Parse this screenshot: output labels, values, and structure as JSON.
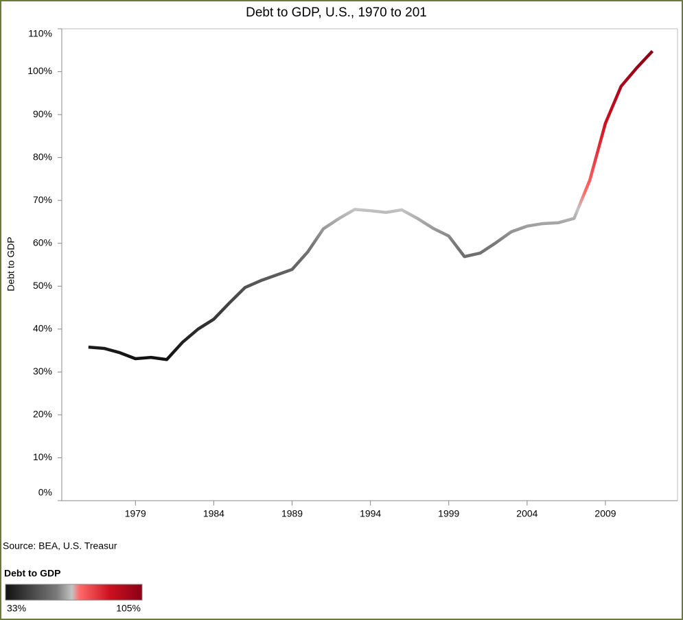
{
  "chart_data": {
    "type": "line",
    "title": "Debt to GDP, U.S., 1970 to 201",
    "y_label": "Debt to GDP",
    "source": "Source: BEA, U.S. Treasur",
    "x": [
      1976,
      1977,
      1978,
      1979,
      1980,
      1981,
      1982,
      1983,
      1984,
      1985,
      1986,
      1987,
      1988,
      1989,
      1990,
      1991,
      1992,
      1993,
      1994,
      1995,
      1996,
      1997,
      1998,
      1999,
      2000,
      2001,
      2002,
      2003,
      2004,
      2005,
      2006,
      2007,
      2008,
      2009,
      2010,
      2011,
      2012
    ],
    "series": [
      {
        "name": "Debt to GDP",
        "values": [
          35.8,
          35.5,
          34.5,
          33.1,
          33.4,
          32.9,
          36.9,
          40.0,
          42.3,
          46.1,
          49.7,
          51.3,
          52.6,
          53.9,
          58.0,
          63.4,
          65.8,
          67.9,
          67.6,
          67.2,
          67.8,
          65.8,
          63.5,
          61.7,
          56.9,
          57.7,
          60.1,
          62.7,
          64.0,
          64.6,
          64.8,
          65.8,
          74.7,
          88.0,
          96.6,
          100.9,
          104.8
        ]
      }
    ],
    "xlim": [
      1974.3,
      2013.6
    ],
    "xticks": [
      1979,
      1984,
      1989,
      1994,
      1999,
      2004,
      2009
    ],
    "ylim": [
      0,
      110
    ],
    "yticks": [
      {
        "value": 0,
        "label": "0%"
      },
      {
        "value": 10,
        "label": "10%"
      },
      {
        "value": 20,
        "label": "20%"
      },
      {
        "value": 30,
        "label": "30%"
      },
      {
        "value": 40,
        "label": "40%"
      },
      {
        "value": 50,
        "label": "50%"
      },
      {
        "value": 60,
        "label": "60%"
      },
      {
        "value": 70,
        "label": "70%"
      },
      {
        "value": 80,
        "label": "80%"
      },
      {
        "value": 90,
        "label": "90%"
      },
      {
        "value": 100,
        "label": "100%"
      },
      {
        "value": 110,
        "label": "110%"
      }
    ],
    "colorscale": [
      {
        "value": 33,
        "color": "#111111"
      },
      {
        "value": 60,
        "color": "#7a7a7a"
      },
      {
        "value": 68,
        "color": "#c4c4c4"
      },
      {
        "value": 72,
        "color": "#ff6a6a"
      },
      {
        "value": 88,
        "color": "#cc1020"
      },
      {
        "value": 105,
        "color": "#8a0015"
      }
    ],
    "colorbar": {
      "title": "Debt to GDP",
      "ticks": [
        {
          "value": 33,
          "label": "33%"
        },
        {
          "value": 105,
          "label": "105%"
        }
      ]
    }
  }
}
